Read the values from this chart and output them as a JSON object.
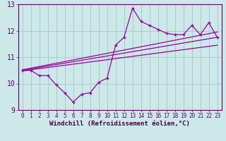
{
  "background_color": "#cce8e8",
  "grid_color": "#aacccc",
  "line_color": "#990099",
  "xlabel": "Windchill (Refroidissement éolien,°C)",
  "xlim": [
    -0.5,
    23.5
  ],
  "ylim": [
    9,
    13
  ],
  "yticks": [
    9,
    10,
    11,
    12,
    13
  ],
  "xticks": [
    0,
    1,
    2,
    3,
    4,
    5,
    6,
    7,
    8,
    9,
    10,
    11,
    12,
    13,
    14,
    15,
    16,
    17,
    18,
    19,
    20,
    21,
    22,
    23
  ],
  "hours": [
    0,
    1,
    2,
    3,
    4,
    5,
    6,
    7,
    8,
    9,
    10,
    11,
    12,
    13,
    14,
    15,
    16,
    17,
    18,
    19,
    20,
    21,
    22,
    23
  ],
  "windchill": [
    10.5,
    10.5,
    10.3,
    10.3,
    9.95,
    9.65,
    9.3,
    9.6,
    9.65,
    10.05,
    10.2,
    11.45,
    11.75,
    12.85,
    12.35,
    12.2,
    12.05,
    11.9,
    11.85,
    11.85,
    12.2,
    11.85,
    12.3,
    11.75
  ],
  "trend1_x": [
    0,
    23
  ],
  "trend1_y": [
    10.5,
    11.75
  ],
  "trend2_x": [
    0,
    23
  ],
  "trend2_y": [
    10.52,
    11.95
  ],
  "trend3_x": [
    0,
    23
  ],
  "trend3_y": [
    10.48,
    11.45
  ]
}
